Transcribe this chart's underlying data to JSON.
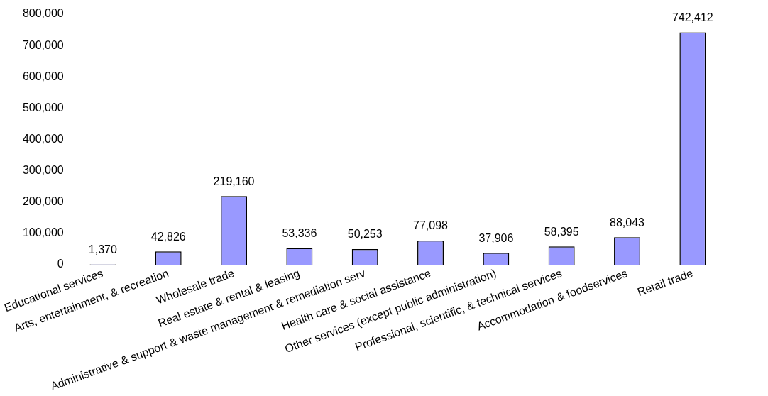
{
  "chart_data": {
    "type": "bar",
    "categories": [
      "Educational services",
      "Arts, entertainment, & recreation",
      "Wholesale trade",
      "Real estate & rental & leasing",
      "Administrative & support & waste management & remediation serv",
      "Health care & social assistance",
      "Other services (except public administration)",
      "Professional, scientific, & technical services",
      "Accommodation & foodservices",
      "Retail trade"
    ],
    "values": [
      1370,
      42826,
      219160,
      53336,
      50253,
      77098,
      37906,
      58395,
      88043,
      742412
    ],
    "color": "#9999ff",
    "ylim": [
      0,
      800000
    ],
    "yticks": [
      {
        "value": 0,
        "label": "0"
      },
      {
        "value": 100000,
        "label": "100,000"
      },
      {
        "value": 200000,
        "label": "200,000"
      },
      {
        "value": 300000,
        "label": "300,000"
      },
      {
        "value": 400000,
        "label": "400,000"
      },
      {
        "value": 500000,
        "label": "500,000"
      },
      {
        "value": 600000,
        "label": "600,000"
      },
      {
        "value": 700000,
        "label": "700,000"
      },
      {
        "value": 800000,
        "label": "800,000"
      }
    ],
    "value_labels": [
      "1,370",
      "42,826",
      "219,160",
      "53,336",
      "50,253",
      "77,098",
      "37,906",
      "58,395",
      "88,043",
      "742,412"
    ],
    "grid": false,
    "legend": false
  }
}
